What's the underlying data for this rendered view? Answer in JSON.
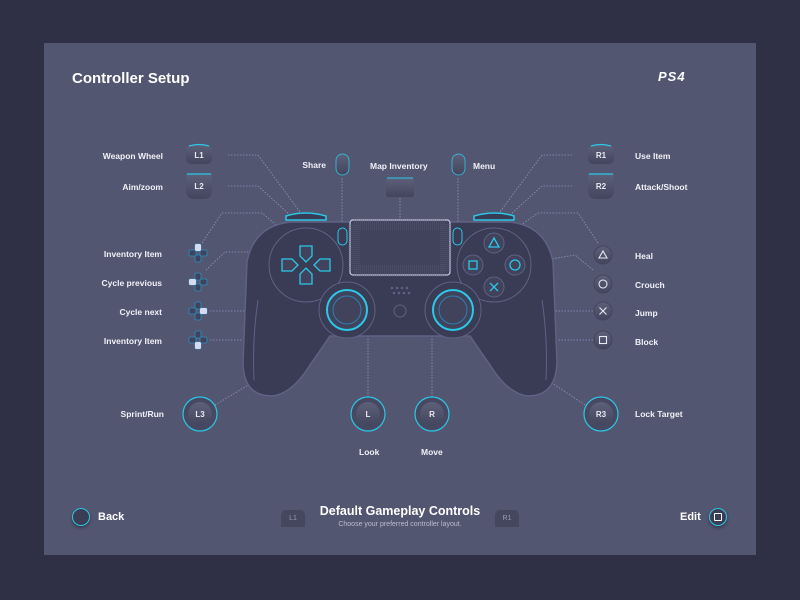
{
  "header": {
    "title": "Controller Setup",
    "logo_text": "PS4"
  },
  "left_mappings": [
    {
      "button": "L1",
      "action": "Weapon Wheel"
    },
    {
      "button": "L2",
      "action": "Aim/zoom"
    },
    {
      "button": "dpad-up",
      "action": "Inventory Item"
    },
    {
      "button": "dpad-left",
      "action": "Cycle previous"
    },
    {
      "button": "dpad-right",
      "action": "Cycle next"
    },
    {
      "button": "dpad-down",
      "action": "Inventory Item"
    },
    {
      "button": "L3",
      "action": "Sprint/Run"
    }
  ],
  "right_mappings": [
    {
      "button": "R1",
      "action": "Use Item"
    },
    {
      "button": "R2",
      "action": "Attack/Shoot"
    },
    {
      "button": "triangle",
      "action": "Heal"
    },
    {
      "button": "circle",
      "action": "Crouch"
    },
    {
      "button": "cross",
      "action": "Jump"
    },
    {
      "button": "square",
      "action": "Block"
    },
    {
      "button": "R3",
      "action": "Lock Target"
    }
  ],
  "top_mappings": [
    {
      "button": "share",
      "action": "Share"
    },
    {
      "button": "touchpad",
      "action": "Map Inventory"
    },
    {
      "button": "options",
      "action": "Menu"
    }
  ],
  "bottom_mappings": [
    {
      "button": "L",
      "action": "Look"
    },
    {
      "button": "R",
      "action": "Move"
    }
  ],
  "footer": {
    "back_label": "Back",
    "edit_label": "Edit",
    "title": "Default Gameplay Controls",
    "subtitle": "Choose your preferred controller layout.",
    "prev_tab": "L1",
    "next_tab": "R1"
  },
  "colors": {
    "background": "#2f3045",
    "panel": "#535670",
    "controller": "#3a3b55",
    "accent": "#2bc8e8"
  }
}
